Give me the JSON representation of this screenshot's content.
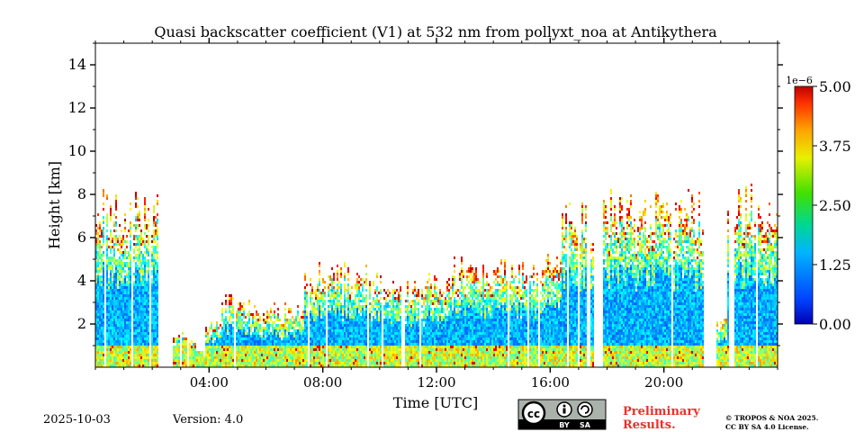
{
  "chart_data": {
    "type": "heatmap",
    "title": "Quasi backscatter coefficient (V1) at 532 nm from pollyxt_noa at Antikythera",
    "xlabel": "Time [UTC]",
    "ylabel": "Height [km]",
    "xlim_hours": [
      0,
      24
    ],
    "ylim_km": [
      0,
      15
    ],
    "x_ticks": [
      {
        "hour": 4,
        "label": "04:00"
      },
      {
        "hour": 8,
        "label": "08:00"
      },
      {
        "hour": 12,
        "label": "12:00"
      },
      {
        "hour": 16,
        "label": "16:00"
      },
      {
        "hour": 20,
        "label": "20:00"
      }
    ],
    "y_ticks": [
      {
        "km": 2,
        "label": "2"
      },
      {
        "km": 4,
        "label": "4"
      },
      {
        "km": 6,
        "label": "6"
      },
      {
        "km": 8,
        "label": "8"
      },
      {
        "km": 10,
        "label": "10"
      },
      {
        "km": 12,
        "label": "12"
      },
      {
        "km": 14,
        "label": "14"
      }
    ],
    "colorbar": {
      "multiplier": "1e−6",
      "range": [
        0,
        5
      ],
      "ticks": [
        {
          "value": 0,
          "label": "0.00"
        },
        {
          "value": 1.25,
          "label": "1.25"
        },
        {
          "value": 2.5,
          "label": "2.50"
        },
        {
          "value": 3.75,
          "label": "3.75"
        },
        {
          "value": 5,
          "label": "5.00"
        }
      ],
      "colormap": "jet"
    },
    "signal_top_km": [
      {
        "start": 0.0,
        "end": 2.2,
        "top": 7.9
      },
      {
        "start": 2.2,
        "end": 2.7,
        "top": 0
      },
      {
        "start": 2.7,
        "end": 3.5,
        "top": 1.6
      },
      {
        "start": 3.5,
        "end": 3.8,
        "top": 0.8
      },
      {
        "start": 3.8,
        "end": 4.4,
        "top": 2.5
      },
      {
        "start": 4.4,
        "end": 5.5,
        "top": 3.3
      },
      {
        "start": 5.5,
        "end": 6.0,
        "top": 2.8
      },
      {
        "start": 6.0,
        "end": 7.3,
        "top": 3.0
      },
      {
        "start": 7.3,
        "end": 9.5,
        "top": 4.8
      },
      {
        "start": 9.5,
        "end": 12.5,
        "top": 4.3
      },
      {
        "start": 12.5,
        "end": 15.5,
        "top": 5.0
      },
      {
        "start": 15.5,
        "end": 16.4,
        "top": 5.6
      },
      {
        "start": 16.4,
        "end": 17.5,
        "top": 7.8
      },
      {
        "start": 17.5,
        "end": 17.8,
        "top": 0
      },
      {
        "start": 17.8,
        "end": 21.4,
        "top": 7.9
      },
      {
        "start": 21.4,
        "end": 21.8,
        "top": 0
      },
      {
        "start": 21.8,
        "end": 22.2,
        "top": 2.5
      },
      {
        "start": 22.2,
        "end": 24.0,
        "top": 8.2
      }
    ],
    "data_gaps_hours": [
      [
        2.2,
        2.7
      ],
      [
        17.5,
        17.8
      ],
      [
        21.4,
        21.8
      ]
    ]
  },
  "footer": {
    "date": "2025-10-03",
    "version": "Version: 4.0",
    "license_badge": {
      "by": "BY",
      "sa": "SA",
      "cc": "cc"
    },
    "preliminary_line1": "Preliminary",
    "preliminary_line2": "Results.",
    "copyright_line1": "© TROPOS & NOA 2025.",
    "copyright_line2": "CC BY SA 4.0 License."
  },
  "colors": {
    "preliminary": "#e8312a"
  }
}
